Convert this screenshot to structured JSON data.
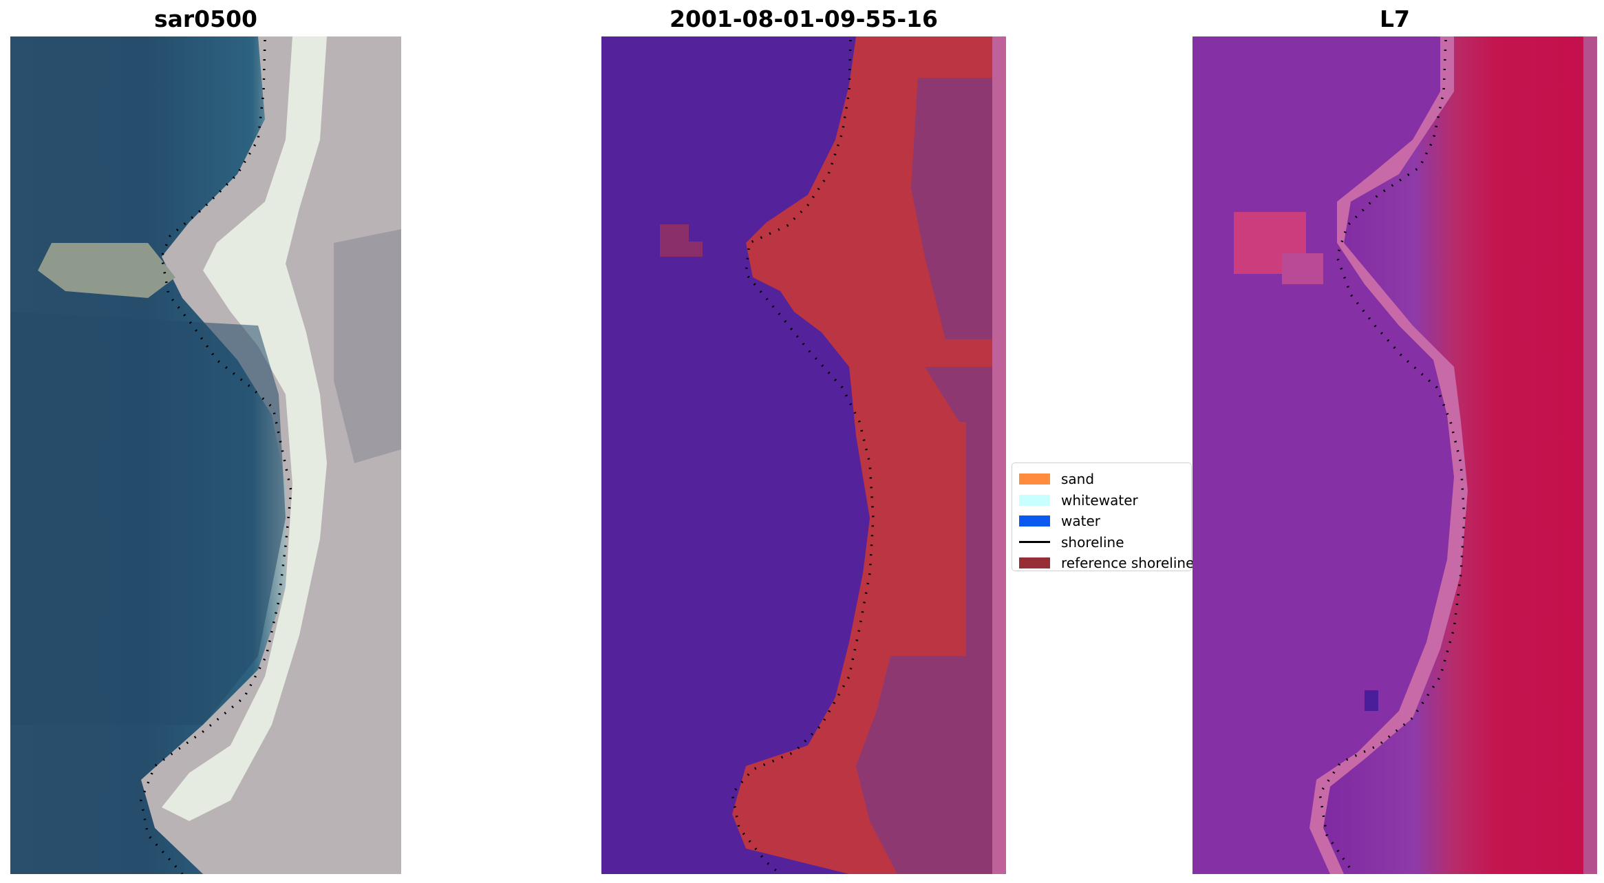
{
  "panels": [
    {
      "title": "sar0500",
      "image": "rgb-satellite-image"
    },
    {
      "title": "2001-08-01-09-55-16",
      "image": "classified-image"
    },
    {
      "title": "L7",
      "image": "mndwi-image"
    }
  ],
  "legend": {
    "items": [
      {
        "label": "sand",
        "color": "#FF8C3C",
        "kind": "patch"
      },
      {
        "label": "whitewater",
        "color": "#C8FFFF",
        "kind": "patch"
      },
      {
        "label": "water",
        "color": "#0A5AF0",
        "kind": "patch"
      },
      {
        "label": "shoreline",
        "color": "#000000",
        "kind": "line"
      },
      {
        "label": "reference shoreline",
        "color": "#962D37",
        "kind": "patch"
      }
    ]
  }
}
